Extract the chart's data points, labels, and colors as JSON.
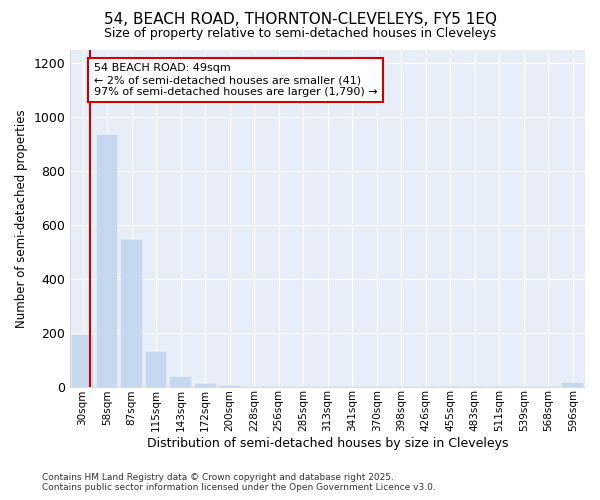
{
  "title_line1": "54, BEACH ROAD, THORNTON-CLEVELEYS, FY5 1EQ",
  "title_line2": "Size of property relative to semi-detached houses in Cleveleys",
  "xlabel": "Distribution of semi-detached houses by size in Cleveleys",
  "ylabel": "Number of semi-detached properties",
  "categories": [
    "30sqm",
    "58sqm",
    "87sqm",
    "115sqm",
    "143sqm",
    "172sqm",
    "200sqm",
    "228sqm",
    "256sqm",
    "285sqm",
    "313sqm",
    "341sqm",
    "370sqm",
    "398sqm",
    "426sqm",
    "455sqm",
    "483sqm",
    "511sqm",
    "539sqm",
    "568sqm",
    "596sqm"
  ],
  "values": [
    193,
    935,
    545,
    130,
    37,
    10,
    1,
    0,
    0,
    0,
    0,
    0,
    0,
    0,
    0,
    0,
    0,
    0,
    0,
    0,
    12
  ],
  "bar_color": "#c5d8f0",
  "vline_color": "#cc0000",
  "annotation_box_edgecolor": "#cc0000",
  "background_color": "#ffffff",
  "plot_bg_color": "#e8eef8",
  "grid_color": "#ffffff",
  "ylim": [
    0,
    1250
  ],
  "annotation_line1": "54 BEACH ROAD: 49sqm",
  "annotation_line2": "← 2% of semi-detached houses are smaller (41)",
  "annotation_line3": "97% of semi-detached houses are larger (1,790) →",
  "footer_line1": "Contains HM Land Registry data © Crown copyright and database right 2025.",
  "footer_line2": "Contains public sector information licensed under the Open Government Licence v3.0.",
  "vline_pos": 0.32
}
